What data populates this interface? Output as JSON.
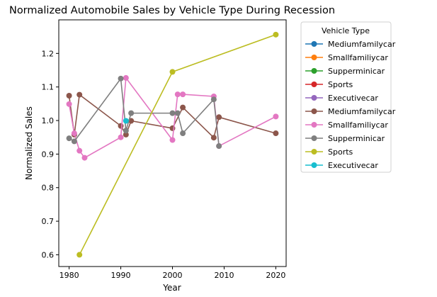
{
  "chart_data": {
    "type": "line",
    "title": "Normalized Automobile Sales by Vehicle Type During Recession",
    "xlabel": "Year",
    "ylabel": "Normalized Sales",
    "xlim": [
      1978,
      2022
    ],
    "ylim": [
      0.565,
      1.3
    ],
    "xticks": [
      "1980",
      "1990",
      "2000",
      "2010",
      "2020"
    ],
    "yticks": [
      "0.6",
      "0.7",
      "0.8",
      "0.9",
      "1.0",
      "1.1",
      "1.2"
    ],
    "grid": false,
    "legend": {
      "title": "Vehicle Type",
      "placement": "outside-right"
    },
    "series": [
      {
        "name": "Mediumfamilycar",
        "color": "#1f77b4",
        "x": [],
        "y": []
      },
      {
        "name": "Smallfamiliycar",
        "color": "#ff7f0e",
        "x": [],
        "y": []
      },
      {
        "name": "Supperminicar",
        "color": "#2ca02c",
        "x": [],
        "y": []
      },
      {
        "name": "Sports",
        "color": "#d62728",
        "x": [],
        "y": []
      },
      {
        "name": "Executivecar",
        "color": "#9467bd",
        "x": [],
        "y": []
      },
      {
        "name": "Mediumfamilycar",
        "color": "#8c564b",
        "x": [
          1980,
          1981,
          1982,
          1990,
          1991,
          1992,
          2000,
          2002,
          2008,
          2009,
          2020
        ],
        "y": [
          1.074,
          0.958,
          1.077,
          0.984,
          0.958,
          0.999,
          0.977,
          1.039,
          0.949,
          1.01,
          0.962
        ]
      },
      {
        "name": "Smallfamiliycar",
        "color": "#e377c2",
        "x": [
          1980,
          1981,
          1982,
          1983,
          1990,
          1991,
          2000,
          2001,
          2002,
          2008,
          2009,
          2020
        ],
        "y": [
          1.049,
          0.962,
          0.91,
          0.889,
          0.95,
          1.127,
          0.942,
          1.078,
          1.078,
          1.072,
          0.924,
          1.012
        ]
      },
      {
        "name": "Supperminicar",
        "color": "#7f7f7f",
        "x": [
          1980,
          1981,
          1990,
          1991,
          1992,
          2000,
          2001,
          2002,
          2008,
          2009
        ],
        "y": [
          0.947,
          0.938,
          1.125,
          0.97,
          1.022,
          1.022,
          1.022,
          0.962,
          1.063,
          0.924
        ]
      },
      {
        "name": "Sports",
        "color": "#bcbd22",
        "x": [
          1982,
          2000,
          2020
        ],
        "y": [
          0.6,
          1.145,
          1.256
        ]
      },
      {
        "name": "Executivecar",
        "color": "#17becf",
        "x": [
          1991
        ],
        "y": [
          0.999
        ]
      }
    ]
  }
}
